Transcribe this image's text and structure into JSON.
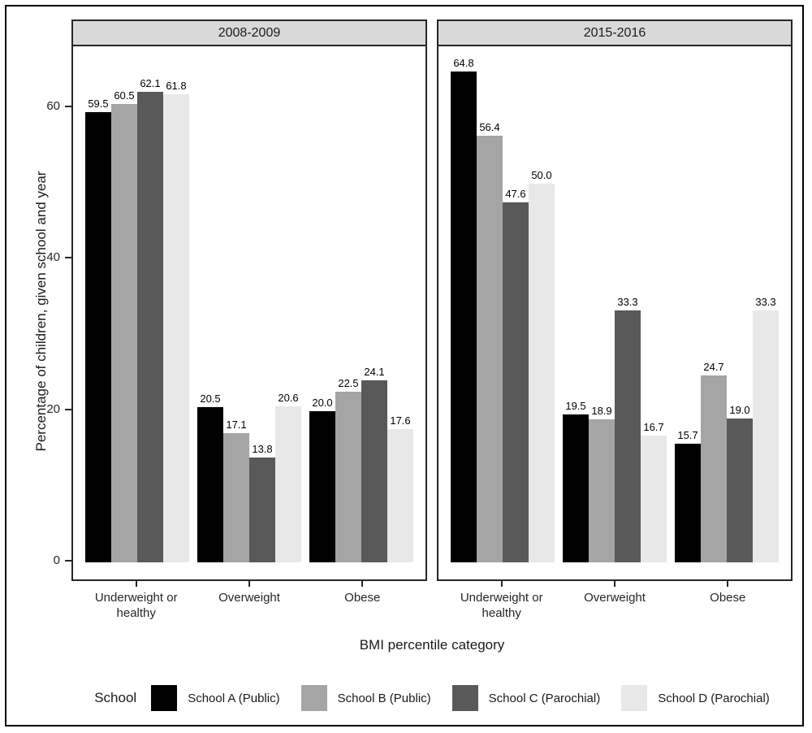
{
  "chart_data": {
    "type": "bar",
    "title": "",
    "xlabel": "BMI percentile category",
    "ylabel": "Percentage of children, given school and year",
    "ylim": [
      0,
      70
    ],
    "yticks": [
      0,
      20,
      40,
      60
    ],
    "grid": false,
    "legend_position": "bottom",
    "legend_title": "School",
    "categories": [
      "Underweight or healthy",
      "Overweight",
      "Obese"
    ],
    "facets": [
      {
        "title": "2008-2009",
        "series": [
          {
            "name": "School A (Public)",
            "color": "#000000",
            "values": [
              59.5,
              20.5,
              20.0
            ]
          },
          {
            "name": "School B (Public)",
            "color": "#a5a5a5",
            "values": [
              60.5,
              17.1,
              22.5
            ]
          },
          {
            "name": "School C (Parochial)",
            "color": "#595959",
            "values": [
              62.1,
              13.8,
              24.1
            ]
          },
          {
            "name": "School D (Parochial)",
            "color": "#e8e8e8",
            "values": [
              61.8,
              20.6,
              17.6
            ]
          }
        ]
      },
      {
        "title": "2015-2016",
        "series": [
          {
            "name": "School A (Public)",
            "color": "#000000",
            "values": [
              64.8,
              19.5,
              15.7
            ]
          },
          {
            "name": "School B (Public)",
            "color": "#a5a5a5",
            "values": [
              56.4,
              18.9,
              24.7
            ]
          },
          {
            "name": "School C (Parochial)",
            "color": "#595959",
            "values": [
              47.6,
              33.3,
              19.0
            ]
          },
          {
            "name": "School D (Parochial)",
            "color": "#e8e8e8",
            "values": [
              50.0,
              16.7,
              33.3
            ]
          }
        ]
      }
    ],
    "colors": {
      "strip_background": "#d9d9d9",
      "panel_border": "#262626",
      "outer_border": "#000000",
      "axis_text": "#262626"
    }
  }
}
